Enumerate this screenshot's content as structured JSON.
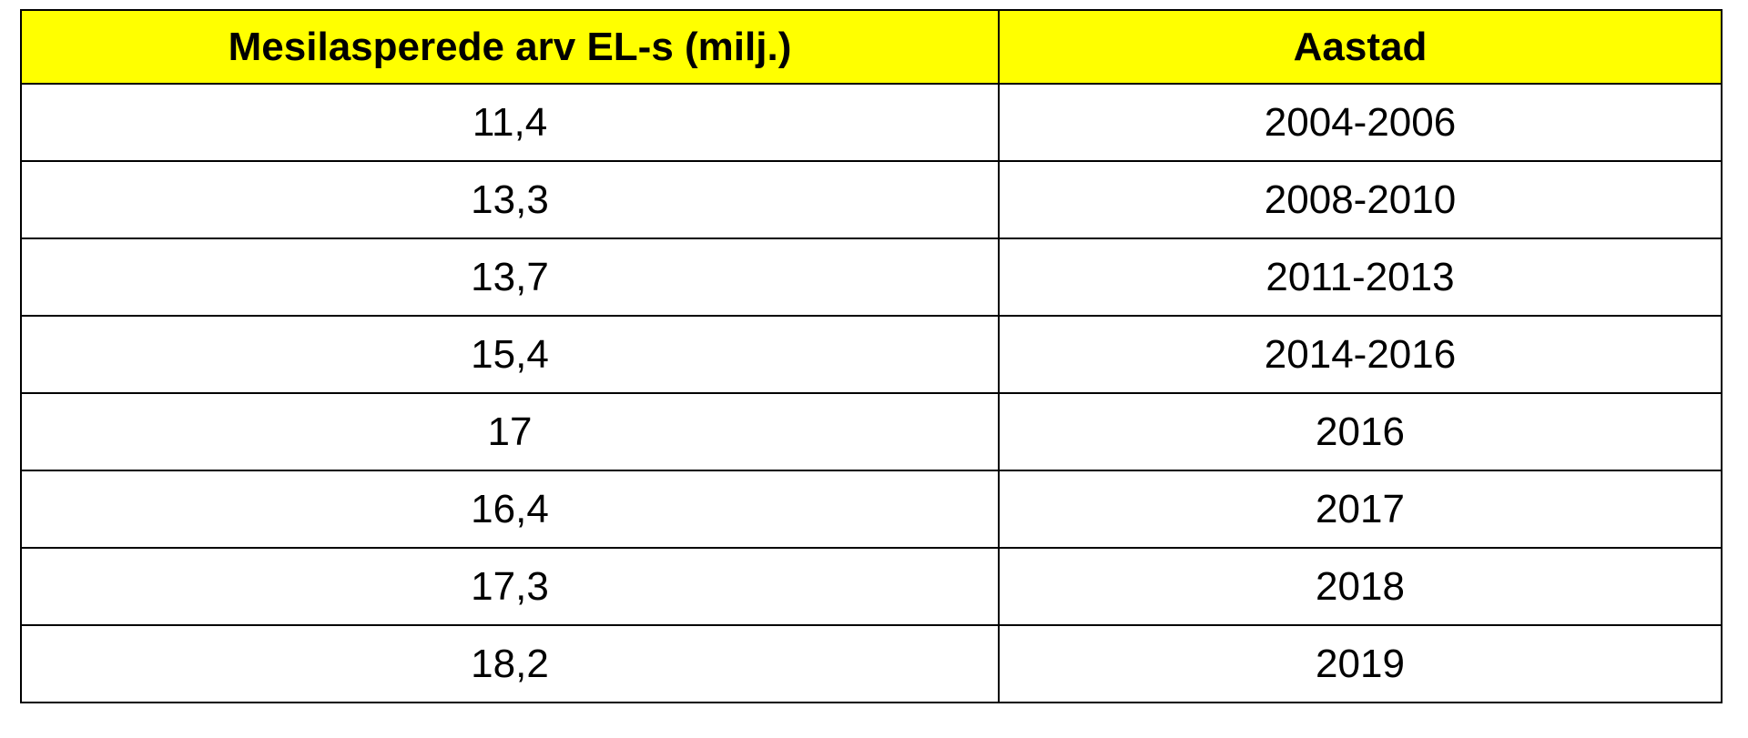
{
  "table": {
    "header": [
      "Mesilasperede arv EL-s (milj.)",
      "Aastad"
    ],
    "rows": [
      [
        "11,4",
        "2004-2006"
      ],
      [
        "13,3",
        "2008-2010"
      ],
      [
        "13,7",
        "2011-2013"
      ],
      [
        "15,4",
        "2014-2016"
      ],
      [
        "17",
        "2016"
      ],
      [
        "16,4",
        "2017"
      ],
      [
        "17,3",
        "2018"
      ],
      [
        "18,2",
        "2019"
      ]
    ]
  }
}
